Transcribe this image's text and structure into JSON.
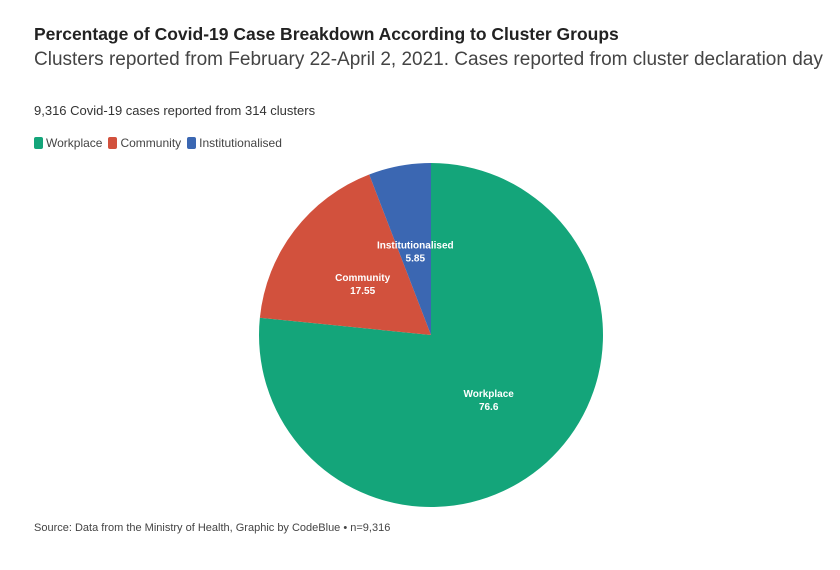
{
  "chart_data": {
    "type": "pie",
    "title": "Percentage of Covid-19 Case Breakdown According to Cluster Groups",
    "subtitle": "Clusters reported from February 22-April 2, 2021. Cases reported from cluster declaration day",
    "note": "9,316 Covid-19 cases reported from 314 clusters",
    "legend_placement": "top-left",
    "categories": [
      "Workplace",
      "Community",
      "Institutionalised"
    ],
    "values": [
      76.6,
      17.55,
      5.85
    ],
    "colors": [
      "#14a57a",
      "#d2513d",
      "#3b67b2"
    ],
    "source": "Source: Data from the Ministry of Health, Graphic by CodeBlue • n=9,316"
  }
}
